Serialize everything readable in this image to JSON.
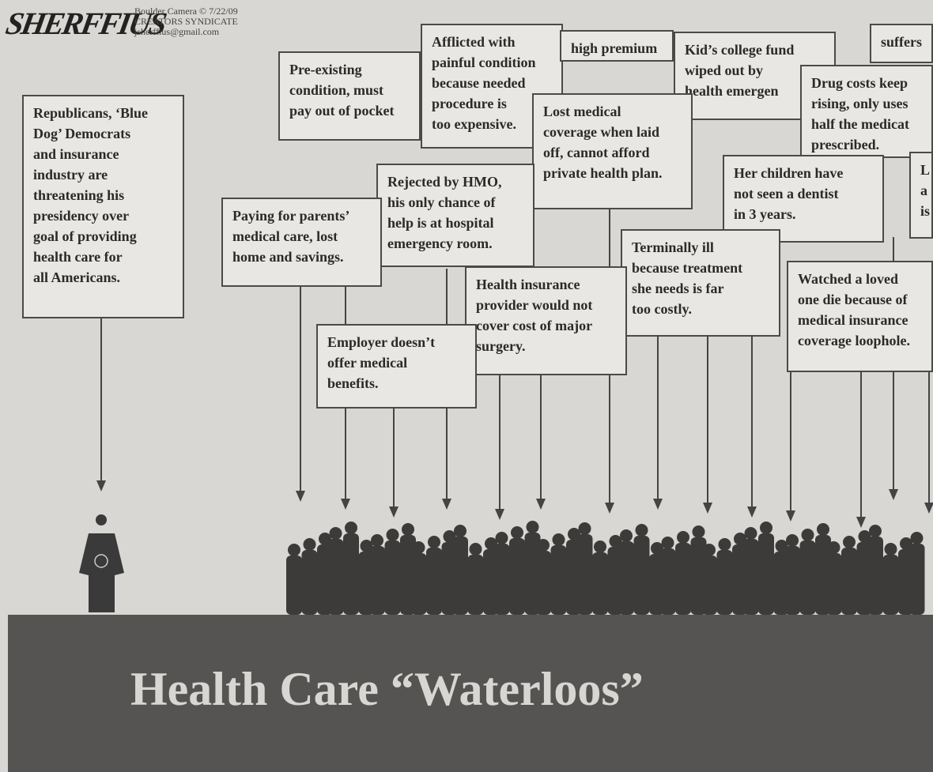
{
  "header": {
    "signature": "SHERFFIUS",
    "credit": [
      "Boulder Camera © 7/22/09",
      "CREATORS SYNDICATE",
      "jsherffius@gmail.com"
    ]
  },
  "boxes": [
    {
      "lines": [
        "Republicans, ‘Blue",
        "Dog’ Democrats",
        "and insurance",
        "industry are",
        "threatening his",
        "presidency over",
        "goal of providing",
        "health care for",
        "all Americans."
      ]
    },
    {
      "lines": [
        "Pre-existing",
        "condition, must",
        "pay out of pocket"
      ]
    },
    {
      "lines": [
        "Afflicted with",
        "painful condition",
        "because needed",
        "procedure is",
        "too expensive."
      ]
    },
    {
      "lines": [
        "high premium"
      ]
    },
    {
      "lines": [
        "Kid’s college fund",
        "wiped out by",
        "health emergen"
      ]
    },
    {
      "lines": [
        "suffers"
      ]
    },
    {
      "lines": [
        "Drug costs keep",
        "rising, only uses",
        "half the medicat",
        "prescribed."
      ]
    },
    {
      "lines": [
        "Lost medical",
        "coverage when laid",
        "off, cannot afford",
        "private health plan."
      ]
    },
    {
      "lines": [
        "Rejected by HMO,",
        "his only chance of",
        "help is at hospital",
        "emergency room."
      ]
    },
    {
      "lines": [
        "Paying for parents’",
        "medical care, lost",
        "home and savings."
      ]
    },
    {
      "lines": [
        "Her children have",
        "not seen a dentist",
        "in 3 years."
      ]
    },
    {
      "lines": [
        "L",
        "a",
        "is"
      ]
    },
    {
      "lines": [
        "Terminally ill",
        "because treatment",
        "she needs is far",
        "too costly."
      ]
    },
    {
      "lines": [
        "Health insurance",
        "provider would not",
        "cover cost of major",
        "surgery."
      ]
    },
    {
      "lines": [
        "Watched a loved",
        "one die because of",
        "medical insurance",
        "coverage loophole."
      ]
    },
    {
      "lines": [
        "Employer doesn’t",
        "offer medical",
        "benefits."
      ]
    }
  ],
  "title": "Health Care “Waterloos”"
}
